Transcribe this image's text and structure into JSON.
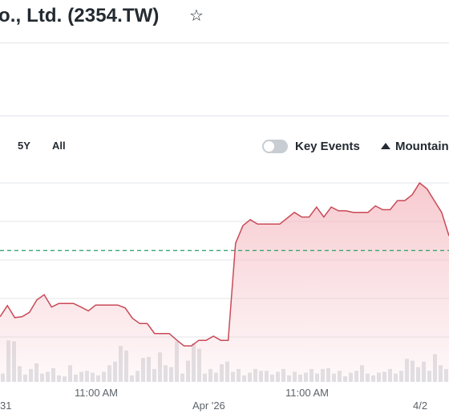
{
  "header": {
    "title": "o., Ltd. (2354.TW)",
    "watch_icon": "star-outline-icon"
  },
  "toolbar": {
    "ranges": [
      {
        "label": "5Y"
      },
      {
        "label": "All"
      }
    ],
    "key_events_label": "Key Events",
    "key_events_on": false,
    "chart_type_label": "Mountain",
    "chart_type_icon": "mountain-icon"
  },
  "colors": {
    "line": "#c94a57",
    "fill_top": "#f4b9c0",
    "baseline": "#3aa576",
    "volume": "#dfe2e5",
    "grid": "#e3e6ea"
  },
  "chart_data": {
    "type": "area",
    "x_tick_labels": [
      "31",
      "11:00 AM",
      "Apr '26",
      "11:00 AM",
      "4/2"
    ],
    "series": [
      {
        "values": [
          54.5,
          58.3,
          54.2,
          54.5,
          56.0,
          60.2,
          62.0,
          57.8,
          59.0,
          59.0,
          59.0,
          57.8,
          56.5,
          58.5,
          58.5,
          58.5,
          58.5,
          57.5,
          54.0,
          52.2,
          52.2,
          48.8,
          48.8,
          48.8,
          46.6,
          44.6,
          44.6,
          46.5,
          46.5,
          47.9,
          46.5,
          46.5,
          79.5,
          85.5,
          87.5,
          86.0,
          86.0,
          86.0,
          86.0,
          88.0,
          90.0,
          88.4,
          88.4,
          91.8,
          88.4,
          91.8,
          90.5,
          90.5,
          90.0,
          90.0,
          90.0,
          92.2,
          90.9,
          90.9,
          94.0,
          94.0,
          96.0,
          100.0,
          98.0,
          94.0,
          90.0,
          82.0
        ]
      }
    ],
    "previous_close": 77.0,
    "volume": [
      9,
      45,
      44,
      17,
      8,
      14,
      20,
      9,
      11,
      15,
      7,
      6,
      18,
      8,
      11,
      12,
      10,
      7,
      11,
      18,
      22,
      39,
      34,
      7,
      12,
      26,
      27,
      14,
      32,
      18,
      16,
      44,
      9,
      23,
      42,
      36,
      9,
      14,
      10,
      19,
      22,
      11,
      14,
      7,
      10,
      14,
      12,
      12,
      8,
      11,
      14,
      7,
      11,
      8,
      10,
      14,
      9,
      14,
      15,
      9,
      12,
      6,
      10,
      12,
      18,
      9,
      7,
      10,
      11,
      14,
      9,
      12,
      25,
      23,
      16,
      22,
      12,
      30,
      18,
      14
    ],
    "grid": true
  }
}
